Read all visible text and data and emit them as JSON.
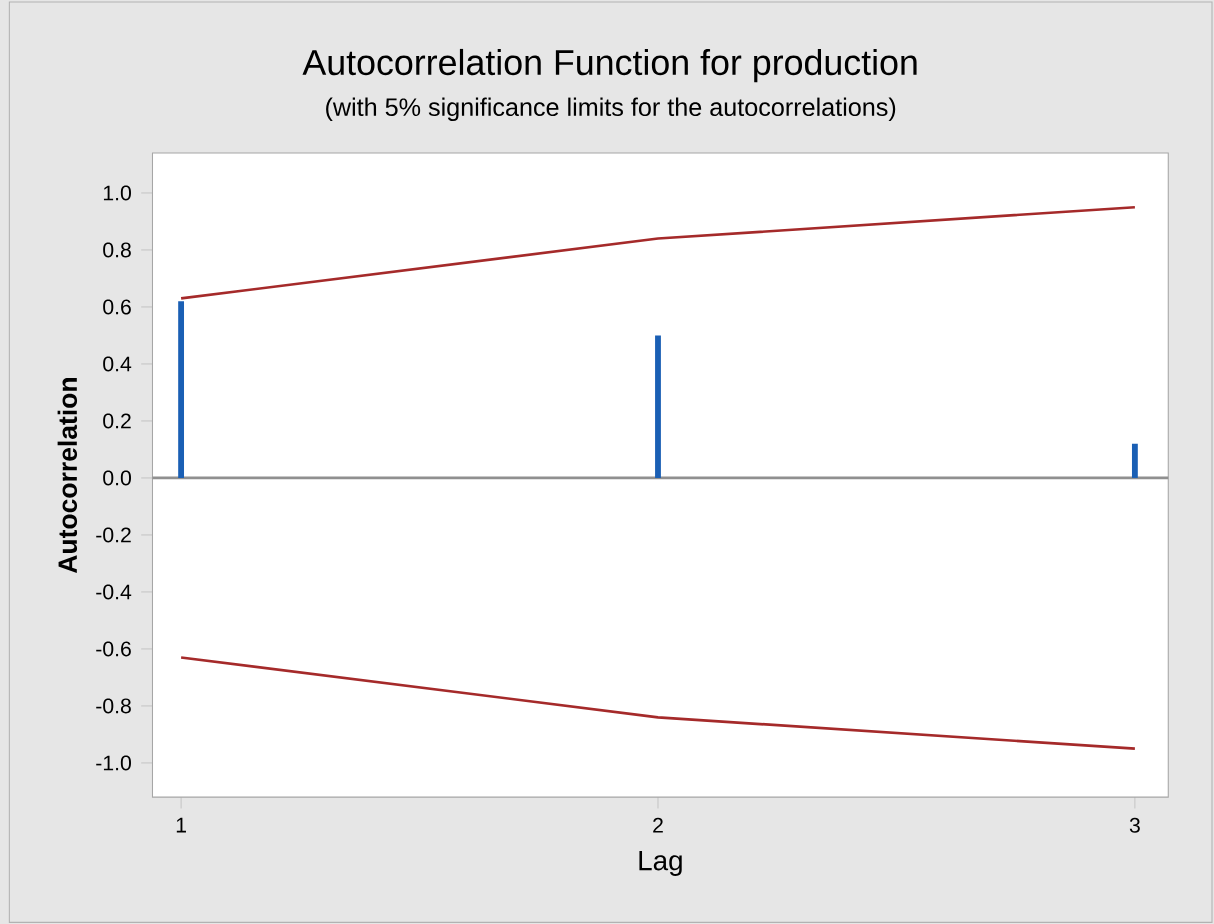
{
  "chart_data": {
    "type": "bar",
    "title": "Autocorrelation Function for production",
    "subtitle": "(with 5% significance limits for the autocorrelations)",
    "xlabel": "Lag",
    "ylabel": "Autocorrelation",
    "x": [
      1,
      2,
      3
    ],
    "series": [
      {
        "color": "#1a5fb4",
        "values": [
          0.62,
          0.5,
          0.12
        ]
      },
      {
        "type": "line",
        "color": "#a52a2a",
        "values": [
          0.63,
          0.84,
          0.95
        ]
      },
      {
        "type": "line",
        "color": "#a52a2a",
        "values": [
          -0.63,
          -0.84,
          -0.95
        ]
      }
    ],
    "ref_lines": [
      {
        "axis": "y",
        "value": 0,
        "color": "#909090"
      }
    ],
    "xlim": [
      0.94,
      3.07
    ],
    "xticks": [
      1,
      2,
      3
    ],
    "ylim": [
      -1.12,
      1.14
    ],
    "yticks": [
      {
        "value": -1.0,
        "label": "-1.0"
      },
      -0.8,
      -0.6,
      -0.4,
      -0.2,
      {
        "value": 0,
        "label": "0.0"
      },
      0.2,
      0.4,
      0.6,
      0.8,
      {
        "value": 1.0,
        "label": "1.0"
      }
    ]
  }
}
